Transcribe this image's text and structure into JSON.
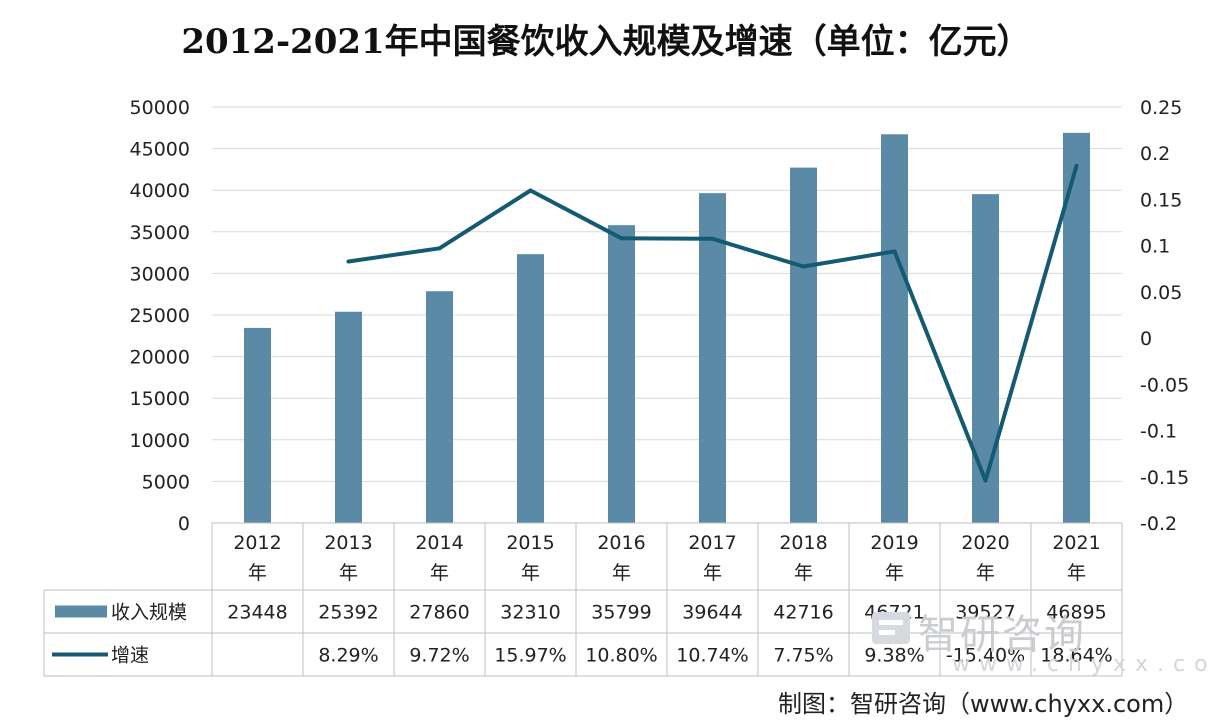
{
  "chart_data": {
    "type": "bar+line",
    "title": "2012-2021年中国餐饮收入规模及增速（单位：亿元）",
    "categories": [
      "2012年",
      "2013年",
      "2014年",
      "2015年",
      "2016年",
      "2017年",
      "2018年",
      "2019年",
      "2020年",
      "2021年"
    ],
    "category_lines": [
      [
        "2012",
        "年"
      ],
      [
        "2013",
        "年"
      ],
      [
        "2014",
        "年"
      ],
      [
        "2015",
        "年"
      ],
      [
        "2016",
        "年"
      ],
      [
        "2017",
        "年"
      ],
      [
        "2018",
        "年"
      ],
      [
        "2019",
        "年"
      ],
      [
        "2020",
        "年"
      ],
      [
        "2021",
        "年"
      ]
    ],
    "series": [
      {
        "name": "收入规模",
        "kind": "bar",
        "axis": "left",
        "color": "#5b8aa7",
        "values": [
          23448,
          25392,
          27860,
          32310,
          35799,
          39644,
          42716,
          46721,
          39527,
          46895
        ],
        "labels": [
          "23448",
          "25392",
          "27860",
          "32310",
          "35799",
          "39644",
          "42716",
          "46721",
          "39527",
          "46895"
        ]
      },
      {
        "name": "增速",
        "kind": "line",
        "axis": "right",
        "color": "#145a72",
        "values": [
          null,
          0.0829,
          0.0972,
          0.1597,
          0.108,
          0.1074,
          0.0775,
          0.0938,
          -0.154,
          0.1864
        ],
        "labels": [
          "",
          "8.29%",
          "9.72%",
          "15.97%",
          "10.80%",
          "10.74%",
          "7.75%",
          "9.38%",
          "-15.40%",
          "18.64%"
        ]
      }
    ],
    "y_left": {
      "ylim": [
        0,
        50000
      ],
      "ticks": [
        "0",
        "5000",
        "10000",
        "15000",
        "20000",
        "25000",
        "30000",
        "35000",
        "40000",
        "45000",
        "50000"
      ]
    },
    "y_right": {
      "ylim": [
        -0.2,
        0.25
      ],
      "ticks": [
        "-0.2",
        "-0.15",
        "-0.1",
        "-0.05",
        "0",
        "0.05",
        "0.1",
        "0.15",
        "0.2",
        "0.25"
      ]
    },
    "grid": true,
    "legend": "data-table"
  },
  "watermark": {
    "brand": "智研咨询",
    "url": "www.chyxx.com"
  },
  "source": "制图：智研咨询（www.chyxx.com）"
}
